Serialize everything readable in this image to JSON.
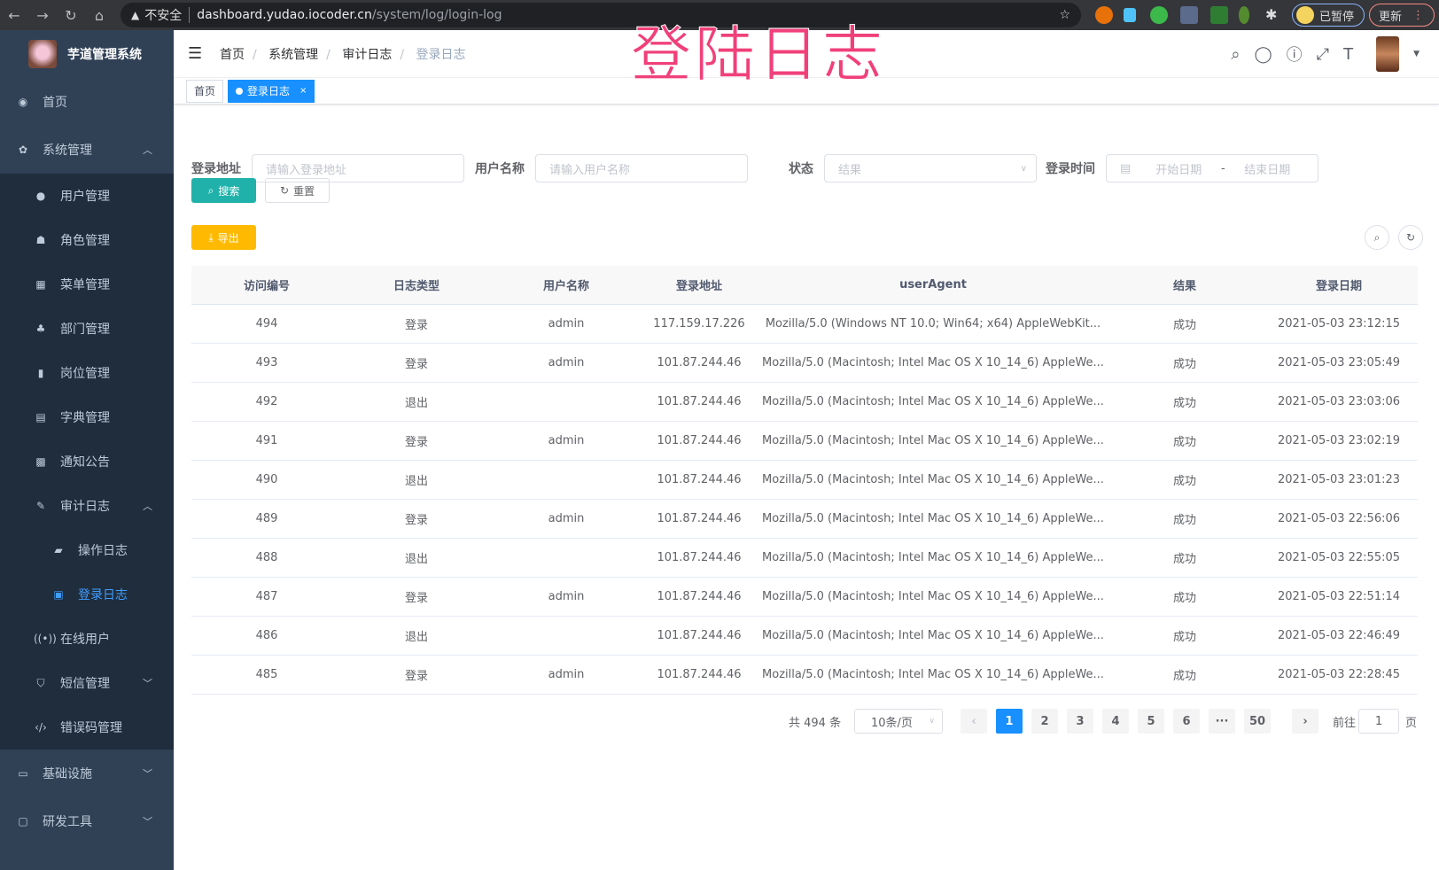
{
  "browser": {
    "nav_icons": [
      "arrow-left-icon",
      "arrow-right-icon",
      "reload-icon",
      "home-icon"
    ],
    "security_label": "不安全",
    "url_host": "dashboard.yudao.iocoder.cn",
    "url_path": "/system/log/login-log",
    "profile_label": "已暂停",
    "update_label": "更新"
  },
  "overlay_title": "登陆日志",
  "sidebar": {
    "app_name": "芋道管理系统",
    "items": [
      {
        "label": "首页",
        "icon": "dashboard-icon",
        "level": 0
      },
      {
        "label": "系统管理",
        "icon": "gear-icon",
        "level": 0,
        "arrow": "up"
      },
      {
        "label": "用户管理",
        "icon": "user-icon",
        "level": 1
      },
      {
        "label": "角色管理",
        "icon": "peoples-icon",
        "level": 1
      },
      {
        "label": "菜单管理",
        "icon": "tree-table-icon",
        "level": 1
      },
      {
        "label": "部门管理",
        "icon": "tree-icon",
        "level": 1
      },
      {
        "label": "岗位管理",
        "icon": "post-icon",
        "level": 1
      },
      {
        "label": "字典管理",
        "icon": "dict-icon",
        "level": 1
      },
      {
        "label": "通知公告",
        "icon": "message-icon",
        "level": 1
      },
      {
        "label": "审计日志",
        "icon": "edit-icon",
        "level": 1,
        "arrow": "up"
      },
      {
        "label": "操作日志",
        "icon": "form-icon",
        "level": 2
      },
      {
        "label": "登录日志",
        "icon": "logininfor-icon",
        "level": 2,
        "active": true
      },
      {
        "label": "在线用户",
        "icon": "online-icon",
        "level": 1
      },
      {
        "label": "短信管理",
        "icon": "validcode-icon",
        "level": 1,
        "arrow": "down"
      },
      {
        "label": "错误码管理",
        "icon": "code-icon",
        "level": 1
      },
      {
        "label": "基础设施",
        "icon": "monitor-icon",
        "level": 0,
        "arrow": "down"
      },
      {
        "label": "研发工具",
        "icon": "tool-icon",
        "level": 0,
        "arrow": "down"
      }
    ]
  },
  "breadcrumb": [
    "首页",
    "系统管理",
    "审计日志",
    "登录日志"
  ],
  "header_icons": [
    "search-icon",
    "github-icon",
    "question-icon",
    "fullscreen-icon",
    "font-size-icon"
  ],
  "tags": [
    {
      "label": "首页"
    },
    {
      "label": "登录日志",
      "active": true
    }
  ],
  "filters": {
    "ip": {
      "label": "登录地址",
      "placeholder": "请输入登录地址"
    },
    "username": {
      "label": "用户名称",
      "placeholder": "请输入用户名称"
    },
    "status": {
      "label": "状态",
      "placeholder": "结果"
    },
    "time": {
      "label": "登录时间",
      "start_placeholder": "开始日期",
      "sep": "-",
      "end_placeholder": "结束日期"
    }
  },
  "buttons": {
    "search": "搜索",
    "reset": "重置",
    "export": "导出"
  },
  "colors": {
    "sidebar": "#304156",
    "submenu": "#1f2d3d",
    "primary": "#1890ff",
    "search_btn": "#20b2aa",
    "export_btn": "#ffba00",
    "overlay": "#f0407a"
  },
  "table": {
    "columns": [
      "访问编号",
      "日志类型",
      "用户名称",
      "登录地址",
      "userAgent",
      "结果",
      "登录日期"
    ],
    "rows": [
      [
        "494",
        "登录",
        "admin",
        "117.159.17.226",
        "Mozilla/5.0 (Windows NT 10.0; Win64; x64) AppleWebKit...",
        "成功",
        "2021-05-03 23:12:15"
      ],
      [
        "493",
        "登录",
        "admin",
        "101.87.244.46",
        "Mozilla/5.0 (Macintosh; Intel Mac OS X 10_14_6) AppleWe...",
        "成功",
        "2021-05-03 23:05:49"
      ],
      [
        "492",
        "退出",
        "",
        "101.87.244.46",
        "Mozilla/5.0 (Macintosh; Intel Mac OS X 10_14_6) AppleWe...",
        "成功",
        "2021-05-03 23:03:06"
      ],
      [
        "491",
        "登录",
        "admin",
        "101.87.244.46",
        "Mozilla/5.0 (Macintosh; Intel Mac OS X 10_14_6) AppleWe...",
        "成功",
        "2021-05-03 23:02:19"
      ],
      [
        "490",
        "退出",
        "",
        "101.87.244.46",
        "Mozilla/5.0 (Macintosh; Intel Mac OS X 10_14_6) AppleWe...",
        "成功",
        "2021-05-03 23:01:23"
      ],
      [
        "489",
        "登录",
        "admin",
        "101.87.244.46",
        "Mozilla/5.0 (Macintosh; Intel Mac OS X 10_14_6) AppleWe...",
        "成功",
        "2021-05-03 22:56:06"
      ],
      [
        "488",
        "退出",
        "",
        "101.87.244.46",
        "Mozilla/5.0 (Macintosh; Intel Mac OS X 10_14_6) AppleWe...",
        "成功",
        "2021-05-03 22:55:05"
      ],
      [
        "487",
        "登录",
        "admin",
        "101.87.244.46",
        "Mozilla/5.0 (Macintosh; Intel Mac OS X 10_14_6) AppleWe...",
        "成功",
        "2021-05-03 22:51:14"
      ],
      [
        "486",
        "退出",
        "",
        "101.87.244.46",
        "Mozilla/5.0 (Macintosh; Intel Mac OS X 10_14_6) AppleWe...",
        "成功",
        "2021-05-03 22:46:49"
      ],
      [
        "485",
        "登录",
        "admin",
        "101.87.244.46",
        "Mozilla/5.0 (Macintosh; Intel Mac OS X 10_14_6) AppleWe...",
        "成功",
        "2021-05-03 22:28:45"
      ]
    ]
  },
  "pagination": {
    "total_label": "共 494 条",
    "page_size": "10条/页",
    "pages": [
      "1",
      "2",
      "3",
      "4",
      "5",
      "6",
      "···",
      "50"
    ],
    "current": "1",
    "goto_label": "前往",
    "goto_value": "1",
    "page_suffix": "页"
  }
}
